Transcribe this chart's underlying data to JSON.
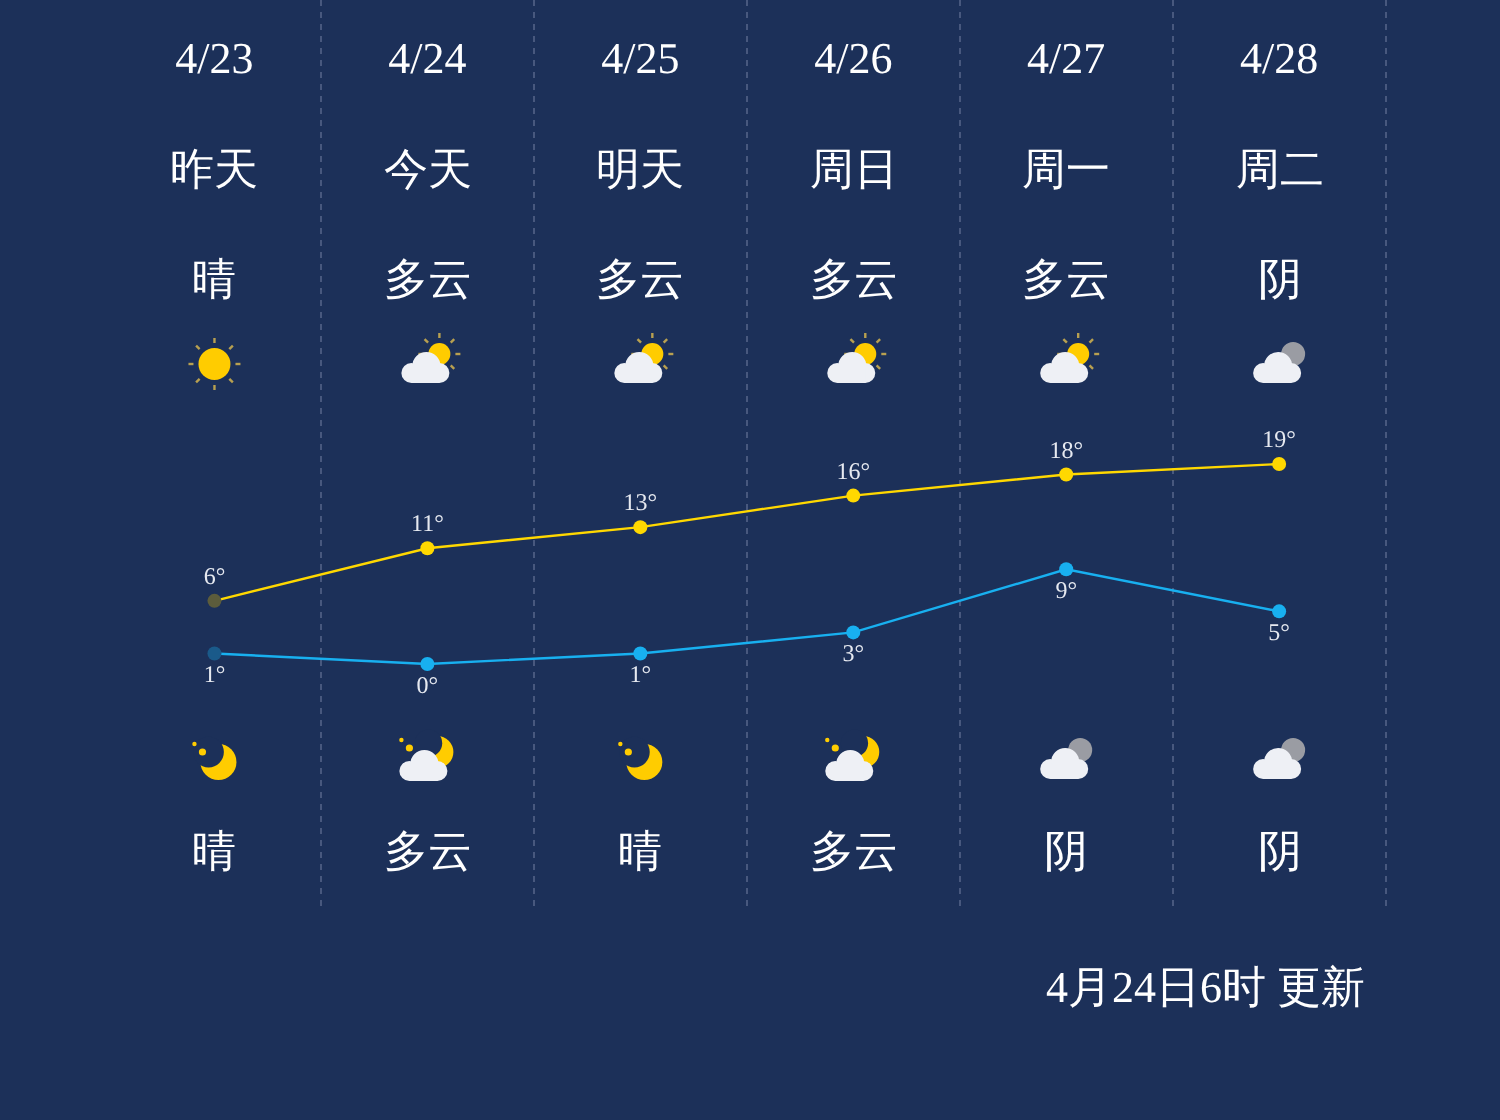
{
  "chart_data": {
    "type": "line",
    "categories": [
      "4/23",
      "4/24",
      "4/25",
      "4/26",
      "4/27",
      "4/28"
    ],
    "series": [
      {
        "color": "#ffd800",
        "colors": [
          "#5c5c3c",
          "#ffd800",
          "#ffd800",
          "#ffd800",
          "#ffd800",
          "#ffd800"
        ],
        "values": [
          6,
          11,
          13,
          16,
          18,
          19
        ],
        "value_labels": [
          "6°",
          "11°",
          "13°",
          "16°",
          "18°",
          "19°"
        ]
      },
      {
        "color": "#18b0f0",
        "colors": [
          "#1a5a8a",
          "#18b0f0",
          "#18b0f0",
          "#18b0f0",
          "#18b0f0",
          "#18b0f0"
        ],
        "values": [
          1,
          0,
          1,
          3,
          9,
          5
        ],
        "value_labels": [
          "1°",
          "0°",
          "1°",
          "3°",
          "9°",
          "5°"
        ]
      }
    ],
    "annotations": [
      "昨天",
      "今天",
      "明天",
      "周日",
      "周一",
      "周二",
      "晴",
      "多云",
      "多云",
      "多云",
      "多云",
      "阴",
      "晴",
      "多云",
      "晴",
      "多云",
      "阴",
      "阴",
      "4月24日6时 更新"
    ],
    "grid": "x",
    "marker": "circle",
    "line_style": "solid",
    "tick_labels": "x"
  }
}
